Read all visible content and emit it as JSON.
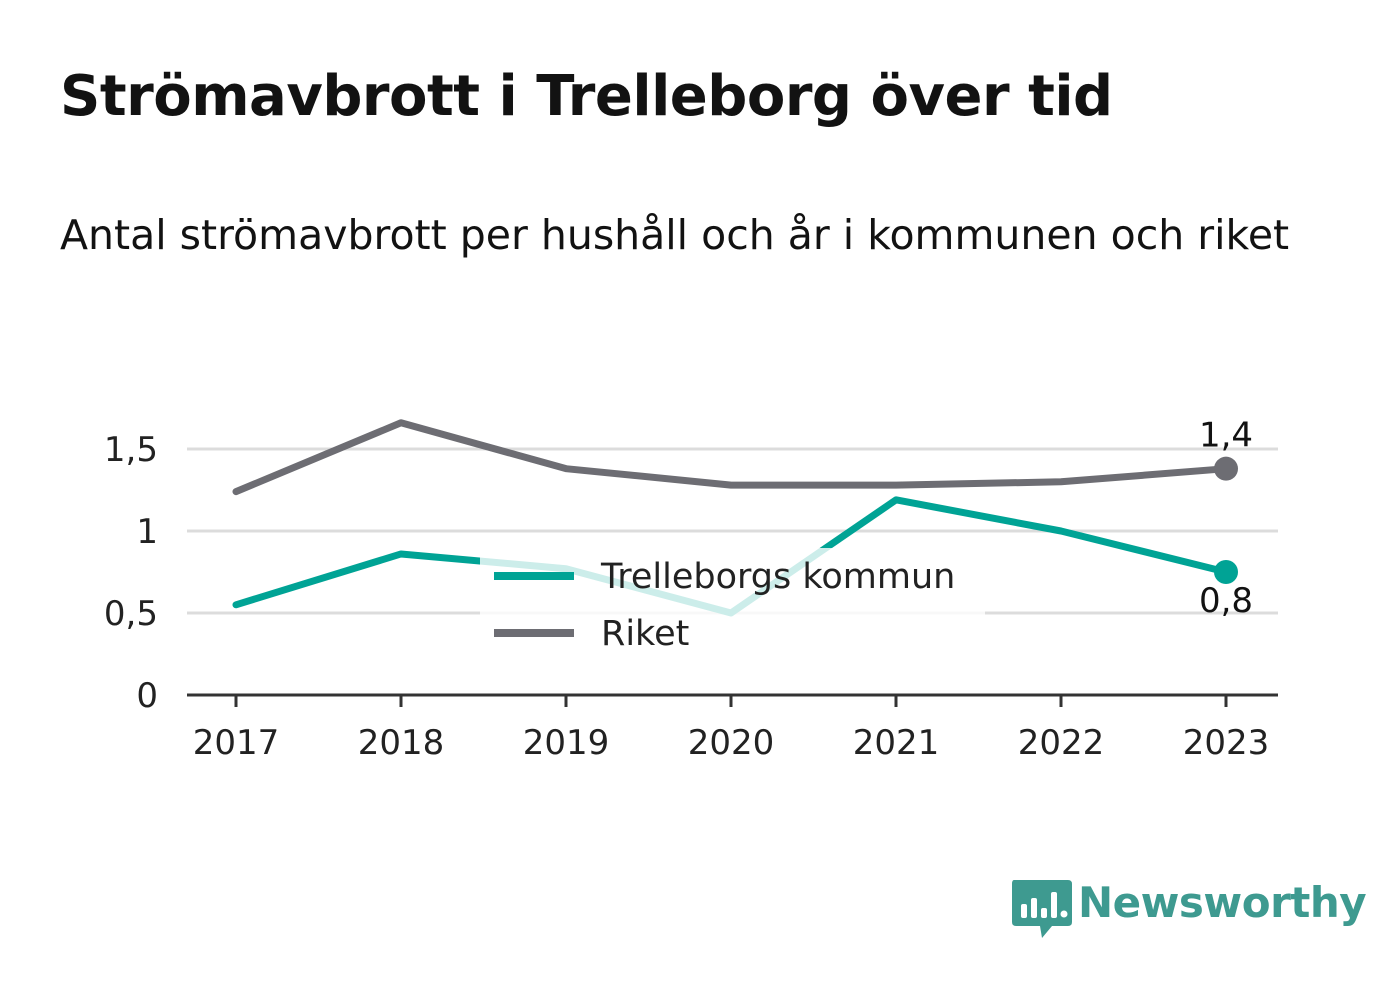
{
  "title": "Strömavbrott i Trelleborg över tid",
  "subtitle": "Antal strömavbrott per hushåll och år i kommunen och riket",
  "brand": {
    "name": "Newsworthy",
    "icon": "newsworthy-chart-icon",
    "color": "#3e9a90"
  },
  "chart_data": {
    "type": "line",
    "categories": [
      "2017",
      "2018",
      "2019",
      "2020",
      "2021",
      "2022",
      "2023"
    ],
    "ylim": [
      0,
      1.75
    ],
    "yticks": [
      0,
      0.5,
      1,
      1.5
    ],
    "ytick_labels": [
      "0",
      "0,5",
      "1",
      "1,5"
    ],
    "grid": true,
    "legend_position": "center",
    "series": [
      {
        "name": "Trelleborgs kommun",
        "color": "#00a395",
        "values": [
          0.55,
          0.86,
          0.77,
          0.5,
          1.19,
          1.0,
          0.75
        ],
        "end_label": "0,8",
        "end_label_position": "below"
      },
      {
        "name": "Riket",
        "color": "#6d6d73",
        "values": [
          1.24,
          1.66,
          1.38,
          1.28,
          1.28,
          1.3,
          1.38
        ],
        "end_label": "1,4",
        "end_label_position": "above"
      }
    ]
  }
}
